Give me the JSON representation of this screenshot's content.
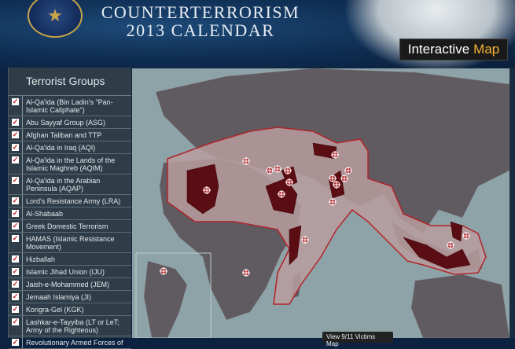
{
  "header": {
    "title_line1": "COUNTERTERRORISM",
    "title_line2": "2013 CALENDAR",
    "seal_icon": "seal-icon",
    "interactive_map": {
      "label": "Interactive",
      "highlight": "Map",
      "highlight_color": "#f2b234"
    }
  },
  "sidebar": {
    "title": "Terrorist Groups",
    "items": [
      {
        "label": "Al-Qa'ida (Bin Ladin's \"Pan-Islamic Caliphate\")",
        "checked": true
      },
      {
        "label": "Abu Sayyaf Group (ASG)",
        "checked": true
      },
      {
        "label": "Afghan Taliban and TTP",
        "checked": true
      },
      {
        "label": "Al-Qa'ida in Iraq (AQI)",
        "checked": true
      },
      {
        "label": "Al-Qa'ida in the Lands of the Islamic Maghreb (AQIM)",
        "checked": true
      },
      {
        "label": "Al-Qa'ida in the Arabian Peninsula (AQAP)",
        "checked": true
      },
      {
        "label": "Lord's Resistance Army (LRA)",
        "checked": true
      },
      {
        "label": "Al-Shabaab",
        "checked": true
      },
      {
        "label": "Greek Domestic Terrorism",
        "checked": true
      },
      {
        "label": "HAMAS (Islamic Resistance Movement)",
        "checked": true
      },
      {
        "label": "Hizballah",
        "checked": true
      },
      {
        "label": "Islamic Jihad Union (IJU)",
        "checked": true
      },
      {
        "label": "Jaish-e-Mohammed (JEM)",
        "checked": true
      },
      {
        "label": "Jemaah Islamiya (JI)",
        "checked": true
      },
      {
        "label": "Kongra-Gel (KGK)",
        "checked": true
      },
      {
        "label": "Lashkar-e-Tayyiba (LT or LeT; Army of the Righteous)",
        "checked": true
      },
      {
        "label": "Revolutionary Armed Forces of",
        "checked": true
      }
    ]
  },
  "map": {
    "colors": {
      "ocean": "#8ea3a8",
      "land": "#5f5b60",
      "region": "#b89c9f",
      "outline": "#b0242a",
      "country": "#5a0d12"
    },
    "victims_button": "View 9/11 Victims Map"
  }
}
